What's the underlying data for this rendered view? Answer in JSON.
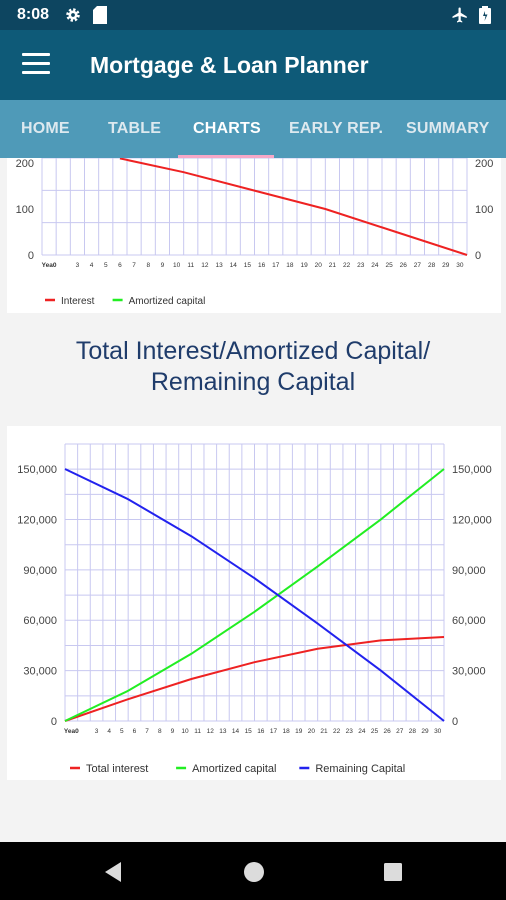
{
  "status_bar": {
    "time": "8:08",
    "icons": [
      "gear-icon",
      "sim-card-icon",
      "airplane-icon",
      "battery-icon"
    ]
  },
  "app_bar": {
    "title": "Mortgage & Loan Planner",
    "menu_icon": "hamburger-menu-icon"
  },
  "tabs": [
    {
      "label": "HOME"
    },
    {
      "label": "TABLE"
    },
    {
      "label": "CHARTS",
      "active": true
    },
    {
      "label": "EARLY REP."
    },
    {
      "label": "SUMMARY"
    }
  ],
  "section2_title_line1": "Total Interest/Amortized Capital/",
  "section2_title_line2": "Remaining Capital",
  "colors": {
    "interest": "#ee2222",
    "amortized": "#22ee22",
    "remaining": "#2222ee",
    "grid": "#c8c8f0"
  },
  "chart_data": [
    {
      "type": "line",
      "x_tick_labels": [
        "Yea0",
        "3",
        "4",
        "5",
        "6",
        "7",
        "8",
        "9",
        "10",
        "11",
        "12",
        "13",
        "14",
        "15",
        "16",
        "17",
        "18",
        "19",
        "20",
        "21",
        "22",
        "23",
        "24",
        "25",
        "26",
        "27",
        "28",
        "29",
        "30"
      ],
      "y_ticks": [
        "0",
        "100",
        "200"
      ],
      "ylim": [
        0,
        200
      ],
      "legend_position": "bottom-left",
      "series": [
        {
          "name": "Interest",
          "x": [
            5.5,
            10,
            15,
            20,
            25,
            30
          ],
          "values": [
            210,
            180,
            140,
            100,
            50,
            0
          ]
        },
        {
          "name": "Amortized capital",
          "x": [],
          "values": []
        }
      ]
    },
    {
      "type": "line",
      "x_tick_labels": [
        "Yea0",
        "3",
        "4",
        "5",
        "6",
        "7",
        "8",
        "9",
        "10",
        "11",
        "12",
        "13",
        "14",
        "15",
        "16",
        "17",
        "18",
        "19",
        "20",
        "21",
        "22",
        "23",
        "24",
        "25",
        "26",
        "27",
        "28",
        "29",
        "30"
      ],
      "y_ticks": [
        "0",
        "30,000",
        "60,000",
        "90,000",
        "120,000",
        "150,000"
      ],
      "ylim": [
        0,
        150000
      ],
      "legend_position": "bottom",
      "series": [
        {
          "name": "Total interest",
          "x": [
            0,
            5,
            10,
            15,
            20,
            25,
            30
          ],
          "values": [
            0,
            13000,
            25000,
            35000,
            43000,
            48000,
            50000
          ]
        },
        {
          "name": "Amortized capital",
          "x": [
            0,
            5,
            10,
            15,
            20,
            25,
            30
          ],
          "values": [
            0,
            18000,
            40000,
            65000,
            92000,
            120000,
            150000
          ]
        },
        {
          "name": "Remaining Capital",
          "x": [
            0,
            5,
            10,
            15,
            20,
            25,
            30
          ],
          "values": [
            150000,
            132000,
            110000,
            85000,
            58000,
            30000,
            0
          ]
        }
      ]
    }
  ],
  "nav_bar": {
    "icons": [
      "back-icon",
      "home-icon",
      "recents-icon"
    ]
  }
}
